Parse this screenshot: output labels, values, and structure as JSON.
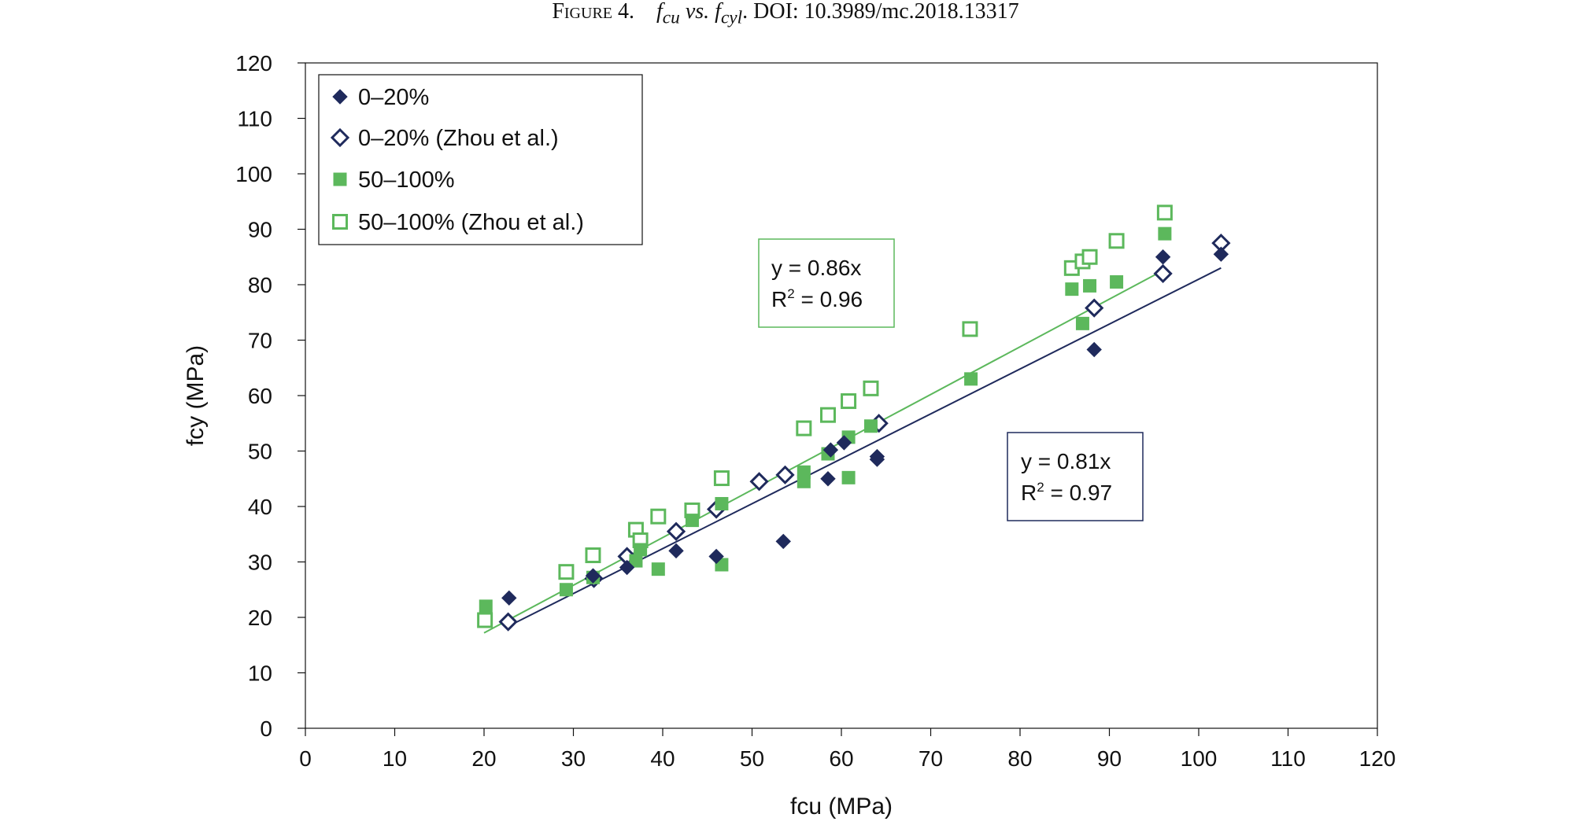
{
  "figure": {
    "label": "Figure 4.",
    "title_var1": "f",
    "title_sub1": "cu",
    "title_vs": "vs.",
    "title_var2": "f",
    "title_sub2": "cyl",
    "title_doi": ". DOI: 10.3989/mc.2018.13317"
  },
  "chart_data": {
    "type": "scatter",
    "xlabel": "fcu (MPa)",
    "ylabel": "fcy (MPa)",
    "xlim": [
      0,
      120
    ],
    "ylim": [
      0,
      120
    ],
    "xticks": [
      0,
      10,
      20,
      30,
      40,
      50,
      60,
      70,
      80,
      90,
      100,
      110,
      120
    ],
    "yticks": [
      0,
      10,
      20,
      30,
      40,
      50,
      60,
      70,
      80,
      90,
      100,
      110,
      120
    ],
    "grid": false,
    "legend_position": "top-left",
    "series": [
      {
        "name": "0–20%",
        "marker": "diamond-filled",
        "color": "#1f2a5c",
        "points": [
          [
            22.8,
            23.5
          ],
          [
            32.2,
            27.5
          ],
          [
            36,
            29
          ],
          [
            41.5,
            32
          ],
          [
            46,
            31
          ],
          [
            53.5,
            33.7
          ],
          [
            58.5,
            45
          ],
          [
            58.8,
            50.2
          ],
          [
            60.3,
            51.5
          ],
          [
            64,
            48.5
          ],
          [
            64,
            49
          ],
          [
            88.3,
            68.3
          ],
          [
            96,
            85
          ],
          [
            102.5,
            85.5
          ]
        ]
      },
      {
        "name": "0–20% (Zhou et al.)",
        "marker": "diamond-open",
        "color": "#1f2a5c",
        "points": [
          [
            22.7,
            19.2
          ],
          [
            32.3,
            27
          ],
          [
            36,
            31
          ],
          [
            41.5,
            35.5
          ],
          [
            46,
            39.5
          ],
          [
            50.8,
            44.5
          ],
          [
            53.7,
            45.7
          ],
          [
            64.2,
            55
          ],
          [
            88.3,
            75.8
          ],
          [
            96,
            82
          ],
          [
            102.5,
            87.5
          ]
        ]
      },
      {
        "name": "50–100%",
        "marker": "square-filled",
        "color": "#5cb85c",
        "points": [
          [
            20.2,
            22
          ],
          [
            29.2,
            25
          ],
          [
            32.2,
            27.2
          ],
          [
            37,
            30.2
          ],
          [
            37.5,
            32.2
          ],
          [
            39.5,
            28.7
          ],
          [
            43.3,
            37.5
          ],
          [
            46.6,
            40.5
          ],
          [
            46.6,
            29.5
          ],
          [
            55.8,
            44.5
          ],
          [
            55.8,
            46.2
          ],
          [
            58.5,
            49.5
          ],
          [
            60.8,
            52.5
          ],
          [
            60.8,
            45.2
          ],
          [
            63.3,
            54.5
          ],
          [
            74.5,
            63
          ],
          [
            85.8,
            79.2
          ],
          [
            87,
            73
          ],
          [
            87.8,
            79.8
          ],
          [
            90.8,
            80.5
          ],
          [
            96.2,
            89.2
          ]
        ]
      },
      {
        "name": "50–100% (Zhou et al.)",
        "marker": "square-open",
        "color": "#5cb85c",
        "points": [
          [
            20.1,
            19.5
          ],
          [
            29.2,
            28.2
          ],
          [
            32.2,
            31.2
          ],
          [
            37,
            35.8
          ],
          [
            37.5,
            33.9
          ],
          [
            39.5,
            38.2
          ],
          [
            43.3,
            39.3
          ],
          [
            46.6,
            45.1
          ],
          [
            55.8,
            54.1
          ],
          [
            58.5,
            56.5
          ],
          [
            60.8,
            59
          ],
          [
            63.3,
            61.3
          ],
          [
            74.4,
            72
          ],
          [
            85.8,
            83
          ],
          [
            87,
            84.2
          ],
          [
            87.8,
            85
          ],
          [
            90.8,
            87.9
          ],
          [
            96.2,
            93
          ]
        ]
      }
    ],
    "trendlines": [
      {
        "series": "0–20%",
        "slope": 0.81,
        "x_range": [
          22.5,
          102.5
        ],
        "color": "#1f2a5c",
        "equation": "y = 0.81x",
        "r2_prefix": "R",
        "r2_sup": "2",
        "r2_value": " = 0.97"
      },
      {
        "series": "50–100%",
        "slope": 0.86,
        "x_range": [
          20,
          96
        ],
        "color": "#5cb85c",
        "equation": "y = 0.86x",
        "r2_prefix": "R",
        "r2_sup": "2",
        "r2_value": " = 0.96"
      }
    ]
  }
}
